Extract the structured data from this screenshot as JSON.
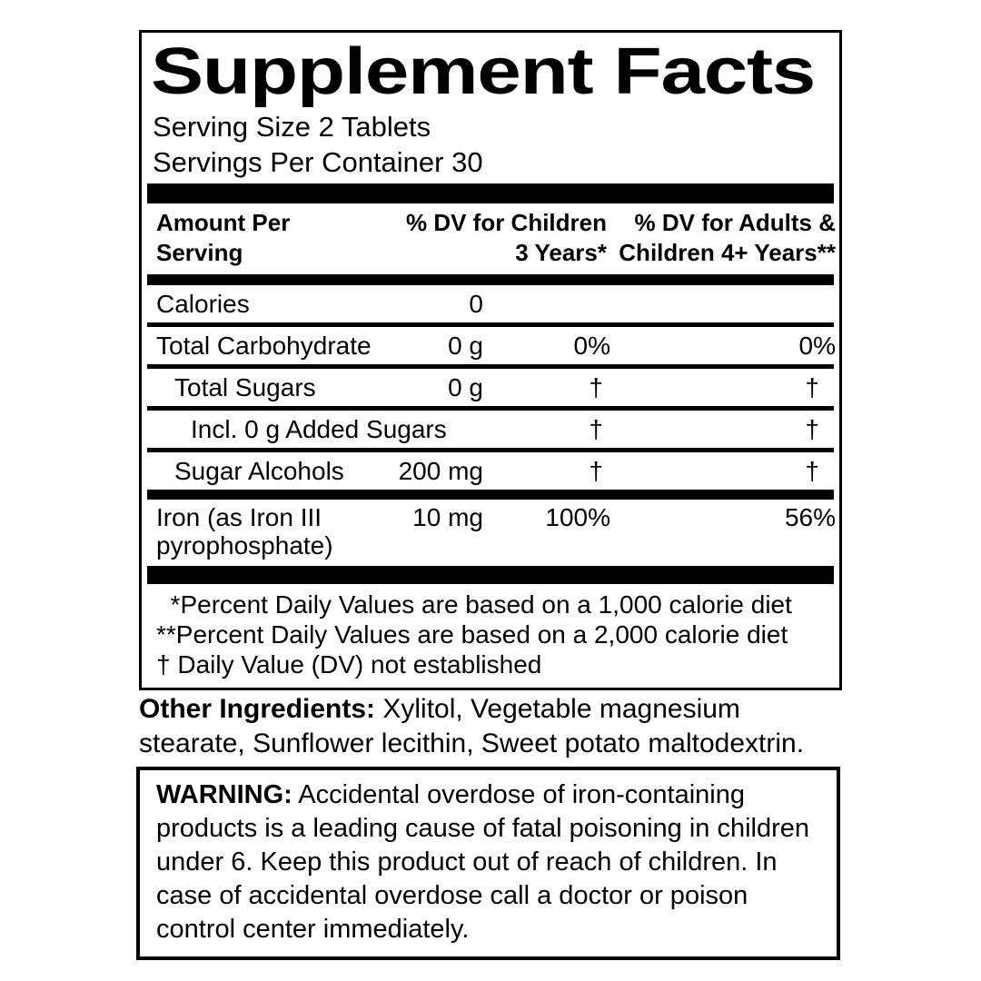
{
  "colors": {
    "ink": "#000000",
    "paper": "#ffffff"
  },
  "panel": {
    "title": "Supplement Facts",
    "serving_size": "Serving Size 2 Tablets",
    "servings_per_container": "Servings Per Container 30",
    "header": {
      "amount_line1": "Amount Per",
      "amount_line2": "Serving",
      "children_line1": "% DV for Children",
      "children_line2": "3 Years*",
      "adults_line1": "% DV for Adults &",
      "adults_line2": "Children 4+ Years**"
    },
    "rows": [
      {
        "label": "Calories",
        "amount": "0",
        "dv_children": "",
        "dv_adults": ""
      },
      {
        "label": "Total Carbohydrate",
        "amount": "0 g",
        "dv_children": "0%",
        "dv_adults": "0%"
      },
      {
        "label": "Total Sugars",
        "amount": "0 g",
        "dv_children": "†",
        "dv_adults": "†"
      },
      {
        "label": "Incl. 0 g Added Sugars",
        "amount": "",
        "dv_children": "†",
        "dv_adults": "†"
      },
      {
        "label": "Sugar Alcohols",
        "amount": "200 mg",
        "dv_children": "†",
        "dv_adults": "†"
      },
      {
        "label": "Iron (as Iron III pyrophosphate)",
        "amount": "10 mg",
        "dv_children": "100%",
        "dv_adults": "56%"
      }
    ],
    "footnotes": [
      "  *Percent Daily Values are based on a 1,000 calorie diet",
      "**Percent Daily Values are based on a 2,000 calorie diet",
      "† Daily Value (DV) not established"
    ]
  },
  "other_ingredients": {
    "label": "Other Ingredients:",
    "text": " Xylitol, Vegetable magnesium stearate, Sunflower lecithin, Sweet potato maltodextrin."
  },
  "warning": {
    "label": "WARNING:",
    "text": " Accidental overdose of iron-containing products is a leading cause of fatal poisoning in children under 6. Keep this product out of reach of children. In case of accidental overdose call a doctor or poison control center immediately."
  }
}
